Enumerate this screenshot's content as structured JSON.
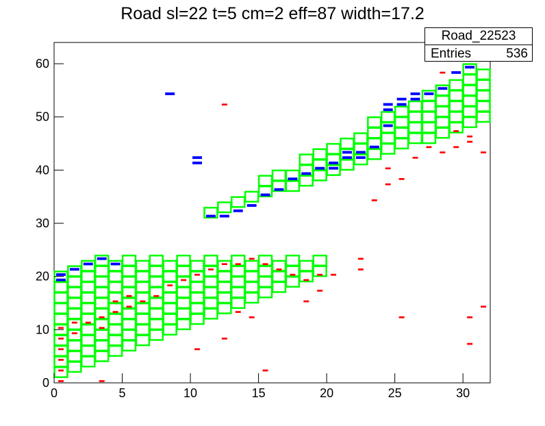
{
  "title": "Road sl=22 t=5 cm=2 eff=87 width=17.2",
  "stats": {
    "name": "Road_22523",
    "entries_label": "Entries",
    "entries_value": "536"
  },
  "chart_data": {
    "type": "heatmap",
    "title": "Road sl=22 t=5 cm=2 eff=87 width=17.2",
    "xlim": [
      0,
      32
    ],
    "ylim": [
      0,
      64
    ],
    "x_ticks": [
      0,
      5,
      10,
      15,
      20,
      25,
      30
    ],
    "y_ticks": [
      0,
      10,
      20,
      30,
      40,
      50,
      60
    ],
    "grid": false,
    "colors": {
      "road": "#00ff00",
      "hit": "#000000",
      "blue": "#0000ff",
      "red": "#ff0000"
    },
    "road_segments": [
      {
        "x_start": 0,
        "x_end": 20,
        "y_bottom_start": 2,
        "y_bottom_slope": 1,
        "y_top_start": 21,
        "y_top_slope": 1,
        "y_cap": 24
      },
      {
        "x_start": 11,
        "x_end": 32,
        "y_bottom_start": 32,
        "y_bottom_slope": 0.9,
        "y_top_start": 33,
        "y_top_slope": 1.4,
        "y_cap": 60
      }
    ],
    "blue_hits": [
      [
        0,
        19
      ],
      [
        0,
        20
      ],
      [
        1,
        21
      ],
      [
        2,
        22
      ],
      [
        3,
        23
      ],
      [
        4,
        22
      ],
      [
        8,
        54
      ],
      [
        10,
        42
      ],
      [
        10,
        41
      ],
      [
        11,
        31
      ],
      [
        12,
        31
      ],
      [
        13,
        32
      ],
      [
        14,
        33
      ],
      [
        15,
        35
      ],
      [
        16,
        36
      ],
      [
        17,
        38
      ],
      [
        18,
        39
      ],
      [
        19,
        40
      ],
      [
        20,
        41
      ],
      [
        21,
        42
      ],
      [
        22,
        43
      ],
      [
        23,
        44
      ],
      [
        24,
        48
      ],
      [
        24,
        51
      ],
      [
        25,
        52
      ],
      [
        26,
        53
      ],
      [
        27,
        54
      ],
      [
        28,
        55
      ],
      [
        29,
        58
      ],
      [
        30,
        59
      ],
      [
        24,
        52
      ],
      [
        26,
        54
      ],
      [
        25,
        53
      ],
      [
        22,
        42
      ],
      [
        21,
        43
      ],
      [
        20,
        40
      ]
    ],
    "red_hits": [
      [
        0,
        0
      ],
      [
        0,
        2
      ],
      [
        0,
        4
      ],
      [
        0,
        6
      ],
      [
        0,
        8
      ],
      [
        0,
        10
      ],
      [
        1,
        9
      ],
      [
        1,
        11
      ],
      [
        2,
        11
      ],
      [
        3,
        10
      ],
      [
        3,
        12
      ],
      [
        4,
        13
      ],
      [
        4,
        15
      ],
      [
        5,
        14
      ],
      [
        5,
        16
      ],
      [
        6,
        15
      ],
      [
        7,
        16
      ],
      [
        8,
        18
      ],
      [
        9,
        19
      ],
      [
        10,
        20
      ],
      [
        11,
        21
      ],
      [
        12,
        22
      ],
      [
        13,
        22
      ],
      [
        14,
        23
      ],
      [
        15,
        22
      ],
      [
        16,
        21
      ],
      [
        17,
        20
      ],
      [
        18,
        19
      ],
      [
        19,
        20
      ],
      [
        20,
        20
      ],
      [
        22,
        23
      ],
      [
        22,
        21
      ],
      [
        23,
        34
      ],
      [
        25,
        38
      ],
      [
        24,
        40
      ],
      [
        26,
        42
      ],
      [
        27,
        44
      ],
      [
        28,
        43
      ],
      [
        29,
        44
      ],
      [
        30,
        45
      ],
      [
        31,
        43
      ],
      [
        28,
        58
      ],
      [
        12,
        52
      ],
      [
        3,
        0
      ],
      [
        15,
        2
      ],
      [
        12,
        8
      ],
      [
        10,
        6
      ],
      [
        25,
        12
      ],
      [
        30,
        7
      ],
      [
        31,
        14
      ],
      [
        30,
        12
      ],
      [
        18,
        15
      ],
      [
        19,
        17
      ],
      [
        13,
        13
      ],
      [
        14,
        12
      ],
      [
        24,
        37
      ],
      [
        29,
        47
      ],
      [
        30,
        46
      ]
    ]
  }
}
